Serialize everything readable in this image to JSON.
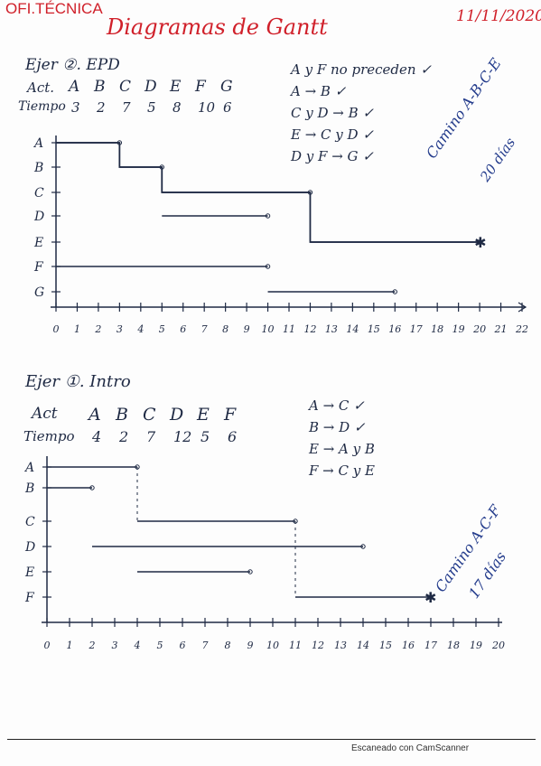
{
  "header": {
    "left_title": "OFI.TÉCNICA",
    "main_title": "Diagramas de Gantt",
    "date": "11/11/2020"
  },
  "exercise2": {
    "title": "Ejer ②. EPD",
    "act_label": "Act.",
    "activities": [
      "A",
      "B",
      "C",
      "D",
      "E",
      "F",
      "G"
    ],
    "time_label": "Tiempo",
    "times": [
      "3",
      "2",
      "7",
      "5",
      "8",
      "10",
      "6"
    ],
    "precedences": [
      "A y F no preceden ✓",
      "A → B ✓",
      "C y D → B ✓",
      "E → C y D ✓",
      "D y F → G ✓"
    ],
    "row_labels": [
      "A",
      "B",
      "C",
      "D",
      "E",
      "F",
      "G"
    ],
    "axis_ticks": [
      "0",
      "1",
      "2",
      "3",
      "4",
      "5",
      "6",
      "7",
      "8",
      "9",
      "10",
      "11",
      "12",
      "13",
      "14",
      "15",
      "16",
      "17",
      "18",
      "19",
      "20",
      "21",
      "22"
    ],
    "critical_path_line1": "Camino A-B-C-E",
    "critical_path_line2": "20 días"
  },
  "exercise1": {
    "title": "Ejer ①. Intro",
    "act_label": "Act",
    "activities": [
      "A",
      "B",
      "C",
      "D",
      "E",
      "F"
    ],
    "time_label": "Tiempo",
    "times": [
      "4",
      "2",
      "7",
      "12",
      "5",
      "6"
    ],
    "precedences": [
      "A → C ✓",
      "B → D ✓",
      "E → A y B",
      "F → C y E"
    ],
    "row_labels": [
      "A",
      "B",
      "C",
      "D",
      "E",
      "F"
    ],
    "axis_ticks": [
      "0",
      "1",
      "2",
      "3",
      "4",
      "5",
      "6",
      "7",
      "8",
      "9",
      "10",
      "11",
      "12",
      "13",
      "14",
      "15",
      "16",
      "17",
      "18",
      "19",
      "20"
    ],
    "critical_path_line1": "Camino A-C-F",
    "critical_path_line2": "17 días"
  },
  "chart_data": [
    {
      "type": "gantt",
      "title": "Ejer 2. EPD",
      "rows": [
        "A",
        "B",
        "C",
        "D",
        "E",
        "F",
        "G"
      ],
      "xlim": [
        0,
        22
      ],
      "bars": [
        {
          "row": "A",
          "start": 0,
          "end": 3
        },
        {
          "row": "B",
          "start": 3,
          "end": 5
        },
        {
          "row": "C",
          "start": 5,
          "end": 12
        },
        {
          "row": "D",
          "start": 5,
          "end": 10
        },
        {
          "row": "E",
          "start": 12,
          "end": 20
        },
        {
          "row": "F",
          "start": 0,
          "end": 10
        },
        {
          "row": "G",
          "start": 10,
          "end": 16
        }
      ],
      "annotation": "Camino A-B-C-E 20 días"
    },
    {
      "type": "gantt",
      "title": "Ejer 1. Intro",
      "rows": [
        "A",
        "B",
        "C",
        "D",
        "E",
        "F"
      ],
      "xlim": [
        0,
        20
      ],
      "bars": [
        {
          "row": "A",
          "start": 0,
          "end": 4
        },
        {
          "row": "B",
          "start": 0,
          "end": 2
        },
        {
          "row": "C",
          "start": 4,
          "end": 11
        },
        {
          "row": "D",
          "start": 2,
          "end": 14
        },
        {
          "row": "E",
          "start": 4,
          "end": 9
        },
        {
          "row": "F",
          "start": 11,
          "end": 17
        }
      ],
      "annotation": "Camino A-C-F 17 días"
    }
  ],
  "footer": {
    "scanner_text": "Escaneado con CamScanner"
  },
  "colors": {
    "red_ink": "#d0202a",
    "blue_ink": "#243c8c",
    "black_ink": "#1f2a44"
  }
}
